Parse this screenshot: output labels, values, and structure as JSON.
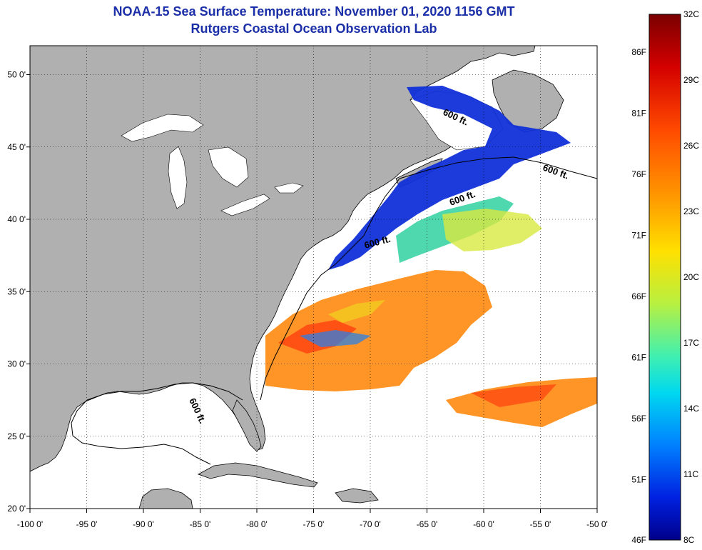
{
  "title_line1": "NOAA-15 Sea Surface Temperature:  November 01, 2020 1156 GMT",
  "title_line2": "Rutgers Coastal Ocean Observation Lab",
  "map": {
    "lon_range": [
      -100,
      -50
    ],
    "lat_range": [
      20,
      52
    ],
    "lon_ticks": [
      -100,
      -95,
      -90,
      -85,
      -80,
      -75,
      -70,
      -65,
      -60,
      -55,
      -50
    ],
    "lon_tick_labels": [
      "-100 0'",
      "-95 0'",
      "-90 0'",
      "-85 0'",
      "-80 0'",
      "-75 0'",
      "-70 0'",
      "-65 0'",
      "-60 0'",
      "-55 0'",
      "-50 0'"
    ],
    "lat_ticks": [
      20,
      25,
      30,
      35,
      40,
      45,
      50
    ],
    "lat_tick_labels": [
      "20 0'",
      "25 0'",
      "30 0'",
      "35 0'",
      "40 0'",
      "45 0'",
      "50 0'"
    ],
    "contour_label": "600 ft.",
    "colors": {
      "land": "#b0b0b0",
      "ocean": "#ffffff"
    }
  },
  "colorbar": {
    "celsius_labels": [
      "32C",
      "29C",
      "26C",
      "23C",
      "20C",
      "17C",
      "14C",
      "11C",
      "8C"
    ],
    "fahrenheit_labels": [
      "86F",
      "81F",
      "76F",
      "71F",
      "66F",
      "61F",
      "56F",
      "51F",
      "46F"
    ],
    "colors": [
      "#7a0000",
      "#d40000",
      "#ff4a00",
      "#ff9a00",
      "#ffe000",
      "#b8f040",
      "#40f0b0",
      "#00d8f0",
      "#0080ff",
      "#0020e0",
      "#00008a"
    ]
  }
}
